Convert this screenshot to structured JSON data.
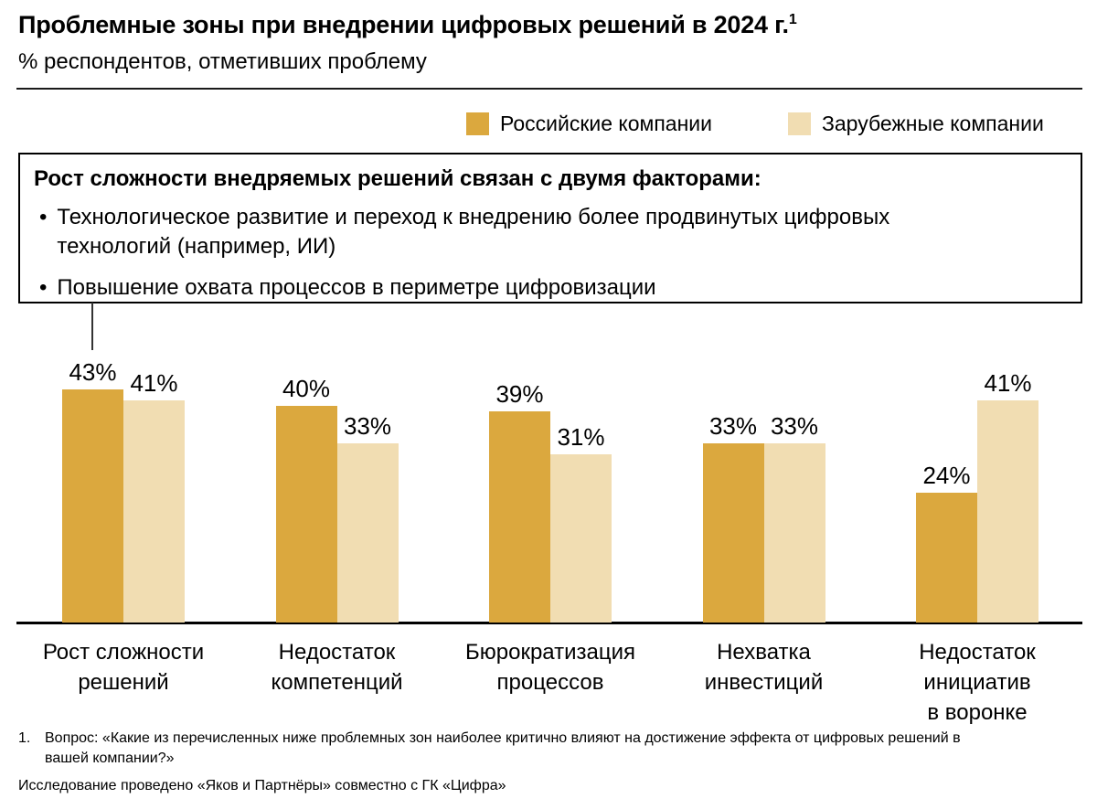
{
  "header": {
    "title": "Проблемные зоны при внедрении цифровых решений в 2024 г.",
    "title_sup": "1",
    "subtitle": "% респондентов, отметивших проблему"
  },
  "legend": [
    {
      "label": "Российские компании",
      "color": "#DBA83E"
    },
    {
      "label": "Зарубежные компании",
      "color": "#F1DDB2"
    }
  ],
  "callout": {
    "heading": "Рост сложности внедряемых решений связан с двумя факторами:",
    "bullets": [
      "Технологическое развитие и переход к внедрению более продвинутых цифровых\nтехнологий (например, ИИ)",
      "Повышение охвата процессов в периметре цифровизации"
    ]
  },
  "chart_data": {
    "type": "bar",
    "title": "Проблемные зоны при внедрении цифровых решений в 2024 г.",
    "ylabel": "% респондентов, отметивших проблему",
    "categories": [
      "Рост сложности\nрешений",
      "Недостаток\nкомпетенций",
      "Бюрократизация\nпроцессов",
      "Нехватка\nинвестиций",
      "Недостаток\nинициатив\nв воронке"
    ],
    "series": [
      {
        "name": "Российские компании",
        "color": "#DBA83E",
        "values": [
          43,
          40,
          39,
          33,
          24
        ]
      },
      {
        "name": "Зарубежные компании",
        "color": "#F1DDB2",
        "values": [
          41,
          33,
          31,
          33,
          41
        ]
      }
    ],
    "value_suffix": "%",
    "ylim": [
      0,
      50
    ],
    "grid": false,
    "legend_position": "top-right"
  },
  "footnotes": [
    {
      "marker": "1.",
      "text": "Вопрос: «Какие из перечисленных ниже проблемных зон наиболее критично влияют на достижение эффекта от цифровых решений в\nвашей компании?»"
    }
  ],
  "source": "Исследование проведено «Яков и Партнёры» совместно с ГК «Цифра»"
}
